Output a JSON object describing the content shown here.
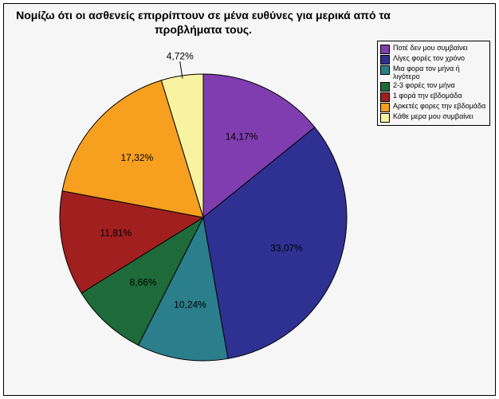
{
  "title_line1": "Νομίζω ότι οι ασθενείς επιρρίπτουν σε μένα ευθύνες για μερικά από τα",
  "title_line2": "προβλήματα τους.",
  "pie": {
    "type": "pie",
    "background_color": "#f6f6f6",
    "outline_color": "#000000",
    "start_angle_deg": -90,
    "direction": "clockwise",
    "radius": 180,
    "title_fontsize": 14,
    "label_fontsize": 12,
    "legend_fontsize": 9,
    "slices": [
      {
        "label": "Ποτέ δεν μου συμβαίνει",
        "value": 14.17,
        "color": "#7f3daf",
        "text": "14,17%"
      },
      {
        "label": "Λίγες φορές τον χρόνο",
        "value": 33.07,
        "color": "#2e3192",
        "text": "33,07%"
      },
      {
        "label": "Μια φορα τον μήνα ή\nλιγότερο",
        "value": 10.24,
        "color": "#2b7e8c",
        "text": "10,24%"
      },
      {
        "label": "2-3 φορές τον μήνα",
        "value": 8.66,
        "color": "#1e6b39",
        "text": "8,66%"
      },
      {
        "label": "1 φορά την εβδομάδα",
        "value": 11.81,
        "color": "#a11f1f",
        "text": "11,81%"
      },
      {
        "label": "Αρκετές φορες την εβδομάδα",
        "value": 17.32,
        "color": "#f7a020",
        "text": "17,32%"
      },
      {
        "label": "Κάθε μερα μου συμβαίνει",
        "value": 4.72,
        "color": "#f7f3a0",
        "text": "4,72%"
      }
    ]
  }
}
